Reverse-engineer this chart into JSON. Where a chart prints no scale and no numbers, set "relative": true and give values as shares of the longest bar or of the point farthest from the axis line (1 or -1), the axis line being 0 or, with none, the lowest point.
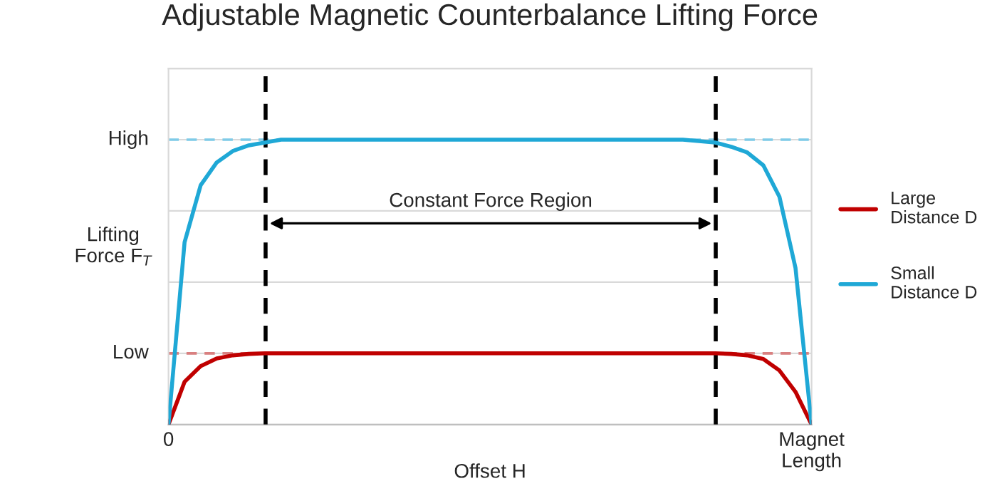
{
  "chart_data": {
    "type": "line",
    "title": "Adjustable Magnetic Counterbalance Lifting Force",
    "xlabel": "Offset H",
    "ylabel": "Lifting\nForce F$_{T}$",
    "relative": true,
    "tick_labels": "x",
    "categories": [
      "0",
      null,
      null,
      null,
      null,
      null,
      null,
      null,
      null,
      null,
      null,
      null,
      null,
      null,
      null,
      null,
      null,
      null,
      null,
      null,
      null,
      null,
      null,
      null,
      null,
      null,
      null,
      null,
      null,
      null,
      null,
      null,
      null,
      null,
      null,
      null,
      null,
      null,
      null,
      null,
      "Magnet\nLength"
    ],
    "series": [
      {
        "name": "Large\nDistance D",
        "color": "#c00000",
        "values": [
          0,
          0.15,
          0.205,
          0.232,
          0.243,
          0.248,
          0.25,
          0.25,
          0.25,
          0.25,
          0.25,
          0.25,
          0.25,
          0.25,
          0.25,
          0.25,
          0.25,
          0.25,
          0.25,
          0.25,
          0.25,
          0.25,
          0.25,
          0.25,
          0.25,
          0.25,
          0.25,
          0.25,
          0.25,
          0.25,
          0.25,
          0.25,
          0.25,
          0.25,
          0.25,
          0.248,
          0.243,
          0.23,
          0.19,
          0.115,
          0
        ]
      },
      {
        "name": "Small\nDistance D",
        "color": "#1fa8d6",
        "values": [
          0,
          0.64,
          0.84,
          0.92,
          0.96,
          0.98,
          0.99,
          1,
          1,
          1,
          1,
          1,
          1,
          1,
          1,
          1,
          1,
          1,
          1,
          1,
          1,
          1,
          1,
          1,
          1,
          1,
          1,
          1,
          1,
          1,
          1,
          1,
          1,
          0.995,
          0.99,
          0.975,
          0.955,
          0.91,
          0.8,
          0.55,
          0
        ]
      }
    ],
    "ref_lines": [
      {
        "axis": "y",
        "value": 1,
        "label": "High",
        "color": "#7fcbe8",
        "line_style": "dashed"
      },
      {
        "axis": "y",
        "value": 0.25,
        "label": "Low",
        "color": "#d98080",
        "line_style": "dashed"
      }
    ],
    "annotations": [
      "Constant Force Region"
    ],
    "grid": true,
    "legend": "right",
    "marker": "none",
    "line_style": "solid"
  }
}
